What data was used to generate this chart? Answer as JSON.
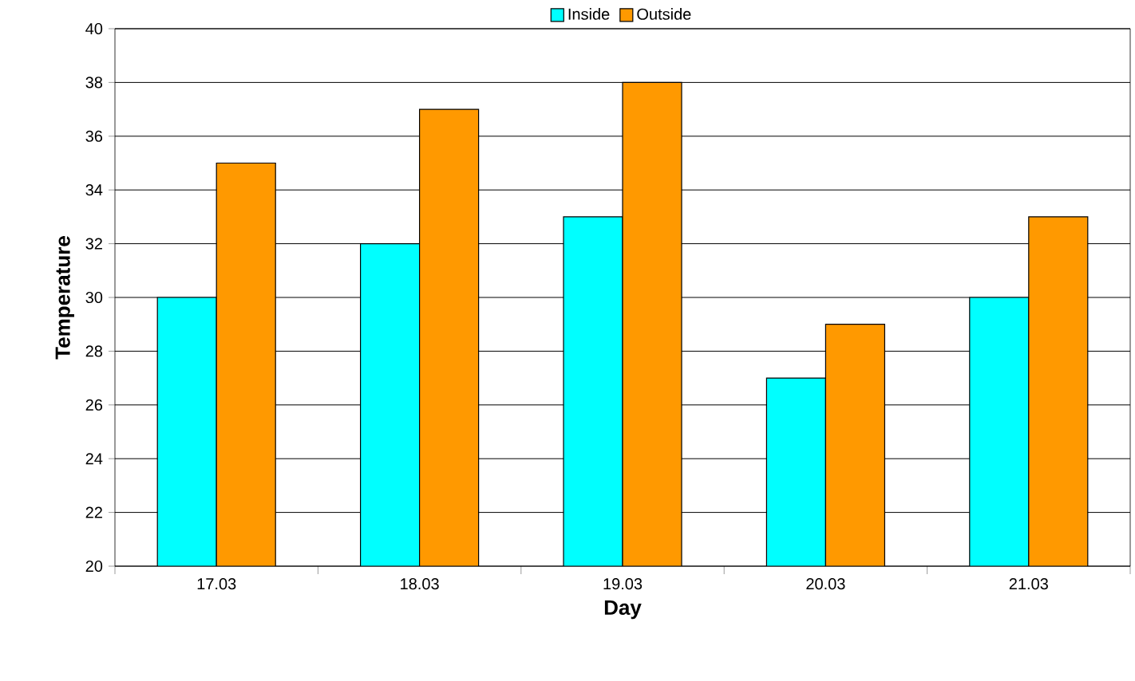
{
  "chart_data": {
    "type": "bar",
    "xlabel": "Day",
    "ylabel": "Temperature",
    "categories": [
      "17.03",
      "18.03",
      "19.03",
      "20.03",
      "21.03"
    ],
    "series": [
      {
        "name": "Inside",
        "color": "#00ffff",
        "values": [
          30,
          32,
          33,
          27,
          30
        ]
      },
      {
        "name": "Outside",
        "color": "#ff9900",
        "values": [
          35,
          37,
          38,
          29,
          33
        ]
      }
    ],
    "ylim": [
      20,
      40
    ],
    "yticks": [
      20,
      22,
      24,
      26,
      28,
      30,
      32,
      34,
      36,
      38,
      40
    ],
    "grid": "y",
    "legend": "top"
  }
}
